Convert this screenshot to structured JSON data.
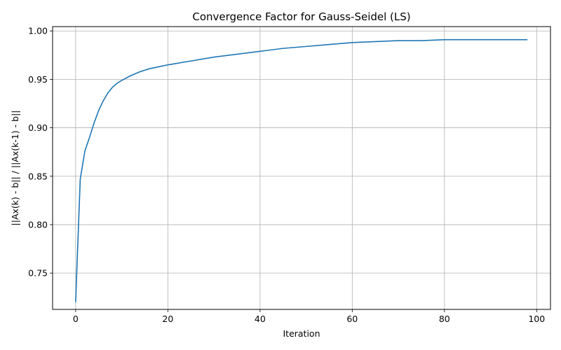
{
  "chart_data": {
    "type": "line",
    "title": "Convergence Factor for Gauss-Seidel (LS)",
    "xlabel": "Iteration",
    "ylabel": "||Ax(k) - b|| / ||Ax(k-1) - b||",
    "xlim": [
      -5,
      103
    ],
    "ylim": [
      0.7125,
      1.0045
    ],
    "xticks": [
      0,
      20,
      40,
      60,
      80,
      100
    ],
    "yticks": [
      0.75,
      0.8,
      0.85,
      0.9,
      0.95,
      1.0
    ],
    "xtick_labels": [
      "0",
      "20",
      "40",
      "60",
      "80",
      "100"
    ],
    "ytick_labels": [
      "0.75",
      "0.80",
      "0.85",
      "0.90",
      "0.95",
      "1.00"
    ],
    "grid": true,
    "series": [
      {
        "color": "#1f77b4",
        "x": [
          0,
          1,
          2,
          3,
          4,
          5,
          6,
          7,
          8,
          9,
          10,
          12,
          14,
          16,
          18,
          20,
          25,
          30,
          35,
          40,
          45,
          50,
          55,
          60,
          65,
          70,
          75,
          80,
          85,
          90,
          95,
          98
        ],
        "y": [
          0.72,
          0.847,
          0.876,
          0.89,
          0.905,
          0.918,
          0.928,
          0.936,
          0.942,
          0.946,
          0.949,
          0.954,
          0.958,
          0.961,
          0.963,
          0.965,
          0.969,
          0.973,
          0.976,
          0.979,
          0.982,
          0.984,
          0.986,
          0.988,
          0.989,
          0.99,
          0.99,
          0.991,
          0.991,
          0.991,
          0.991,
          0.991
        ]
      }
    ]
  }
}
